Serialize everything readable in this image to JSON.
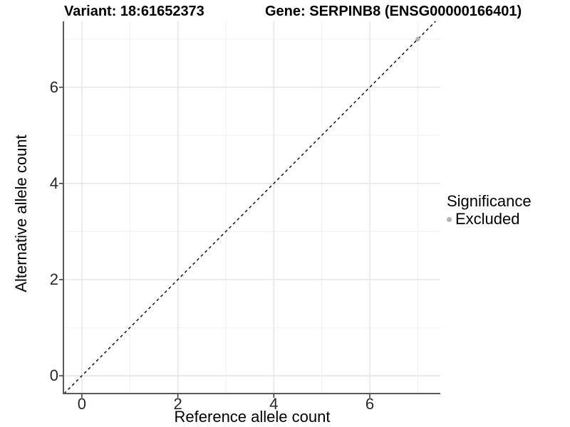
{
  "chart_data": {
    "type": "scatter",
    "title_left": "Variant: 18:61652373",
    "title_right": "Gene: SERPINB8 (ENSG00000166401)",
    "xlabel": "Reference allele count",
    "ylabel": "Alternative allele count",
    "xlim": [
      -0.37,
      7.47
    ],
    "ylim": [
      -0.37,
      7.37
    ],
    "x_major_ticks": [
      0,
      2,
      4,
      6
    ],
    "y_major_ticks": [
      0,
      2,
      4,
      6
    ],
    "x_minor_gridlines": [
      1,
      3,
      5,
      7
    ],
    "y_minor_gridlines": [
      1,
      3,
      5,
      7
    ],
    "grid": true,
    "identity_line": {
      "style": "dashed",
      "equation": "y = x"
    },
    "series": [
      {
        "name": "Excluded",
        "color": "#b3b3b3",
        "points": [
          {
            "x": 7,
            "y": 7,
            "significance": "Excluded"
          }
        ]
      }
    ],
    "legend": {
      "title": "Significance",
      "position": "right",
      "items": [
        {
          "label": "Excluded",
          "color": "#b3b3b3"
        }
      ]
    }
  },
  "colors": {
    "background": "#ffffff",
    "axis_line": "#595959",
    "tick_mark": "#333333",
    "tick_label": "#262626",
    "grid_major": "#e4e4e4",
    "grid_minor": "#f0f0f0",
    "identity_line": "#111111",
    "point": "#b3b3b3"
  }
}
